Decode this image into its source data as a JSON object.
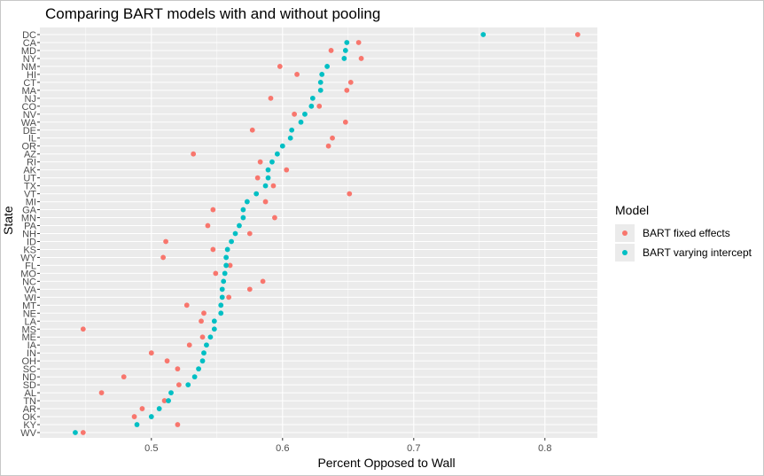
{
  "chart_data": {
    "type": "scatter",
    "title": "Comparing BART models with and without pooling",
    "xlabel": "Percent Opposed to Wall",
    "ylabel": "State",
    "xlim": [
      0.415,
      0.84
    ],
    "x_ticks": [
      0.5,
      0.6,
      0.7,
      0.8
    ],
    "x_tick_labels": [
      "0.5",
      "0.6",
      "0.7",
      "0.8"
    ],
    "grid": true,
    "legend_title": "Model",
    "legend_position": "right",
    "categories": [
      "DC",
      "CA",
      "MD",
      "NY",
      "NM",
      "HI",
      "CT",
      "MA",
      "NJ",
      "CO",
      "NV",
      "WA",
      "DE",
      "IL",
      "OR",
      "AZ",
      "RI",
      "AK",
      "UT",
      "TX",
      "VT",
      "MI",
      "GA",
      "MN",
      "PA",
      "NH",
      "ID",
      "KS",
      "WY",
      "FL",
      "MO",
      "NC",
      "VA",
      "WI",
      "MT",
      "NE",
      "LA",
      "MS",
      "ME",
      "IA",
      "IN",
      "OH",
      "SC",
      "ND",
      "SD",
      "AL",
      "TN",
      "AR",
      "OK",
      "KY",
      "WV"
    ],
    "series": [
      {
        "name": "BART fixed effects",
        "color": "#F8766D",
        "values": [
          0.825,
          0.658,
          0.637,
          0.66,
          0.598,
          0.611,
          0.652,
          0.649,
          0.591,
          0.628,
          0.609,
          0.648,
          0.577,
          0.638,
          0.635,
          0.532,
          0.583,
          0.603,
          0.581,
          0.593,
          0.651,
          0.587,
          0.547,
          0.594,
          0.543,
          0.575,
          0.511,
          0.547,
          0.509,
          0.56,
          0.549,
          0.585,
          0.575,
          0.559,
          0.527,
          0.54,
          0.538,
          0.448,
          0.539,
          0.529,
          0.5,
          0.512,
          0.52,
          0.479,
          0.521,
          0.462,
          0.51,
          0.493,
          0.487,
          0.52,
          0.448
        ]
      },
      {
        "name": "BART varying intercept",
        "color": "#00BFC4",
        "values": [
          0.753,
          0.649,
          0.648,
          0.647,
          0.634,
          0.63,
          0.629,
          0.629,
          0.623,
          0.622,
          0.617,
          0.614,
          0.607,
          0.606,
          0.6,
          0.596,
          0.592,
          0.589,
          0.589,
          0.587,
          0.58,
          0.573,
          0.57,
          0.57,
          0.567,
          0.564,
          0.561,
          0.558,
          0.557,
          0.557,
          0.556,
          0.555,
          0.554,
          0.554,
          0.553,
          0.553,
          0.548,
          0.548,
          0.545,
          0.542,
          0.54,
          0.539,
          0.536,
          0.533,
          0.528,
          0.515,
          0.513,
          0.506,
          0.5,
          0.489,
          0.442
        ]
      }
    ]
  }
}
